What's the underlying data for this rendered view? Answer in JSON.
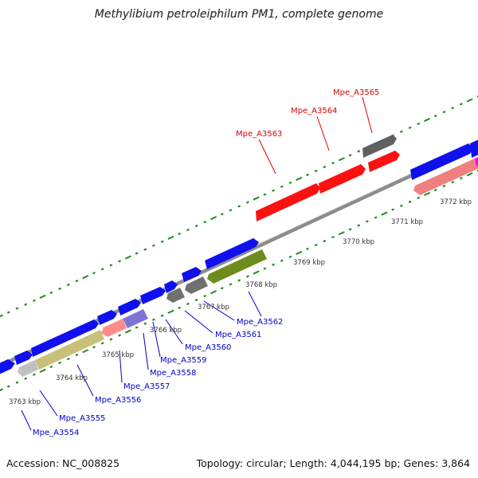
{
  "title": "Methylibium petroleiphilum PM1, complete genome",
  "accession_text": "Accession: NC_008825",
  "summary_text": "Topology: circular; Length: 4,044,195 bp; Genes: 3,864",
  "colors": {
    "backbone": "#8c8c8c",
    "tick": "#228b22",
    "forward_gene": "#1010ee",
    "highlight_gene": "#ff1010",
    "forward_label": "#0000cc",
    "highlight_label": "#dd0000",
    "scale_label": "#333333"
  },
  "scale_labels": [
    "3763 kbp",
    "3764 kbp",
    "3765 kbp",
    "3766 kbp",
    "3767 kbp",
    "3768 kbp",
    "3769 kbp",
    "3770 kbp",
    "3771 kbp",
    "3772 kbp"
  ],
  "gene_labels": [
    {
      "text": "Mpe_A3554",
      "strand": "forward"
    },
    {
      "text": "Mpe_A3555",
      "strand": "forward"
    },
    {
      "text": "Mpe_A3556",
      "strand": "forward"
    },
    {
      "text": "Mpe_A3557",
      "strand": "forward"
    },
    {
      "text": "Mpe_A3558",
      "strand": "forward"
    },
    {
      "text": "Mpe_A3559",
      "strand": "forward"
    },
    {
      "text": "Mpe_A3560",
      "strand": "forward"
    },
    {
      "text": "Mpe_A3561",
      "strand": "forward"
    },
    {
      "text": "Mpe_A3562",
      "strand": "forward"
    },
    {
      "text": "Mpe_A3563",
      "strand": "highlight"
    },
    {
      "text": "Mpe_A3564",
      "strand": "highlight"
    },
    {
      "text": "Mpe_A3565",
      "strand": "highlight"
    }
  ]
}
